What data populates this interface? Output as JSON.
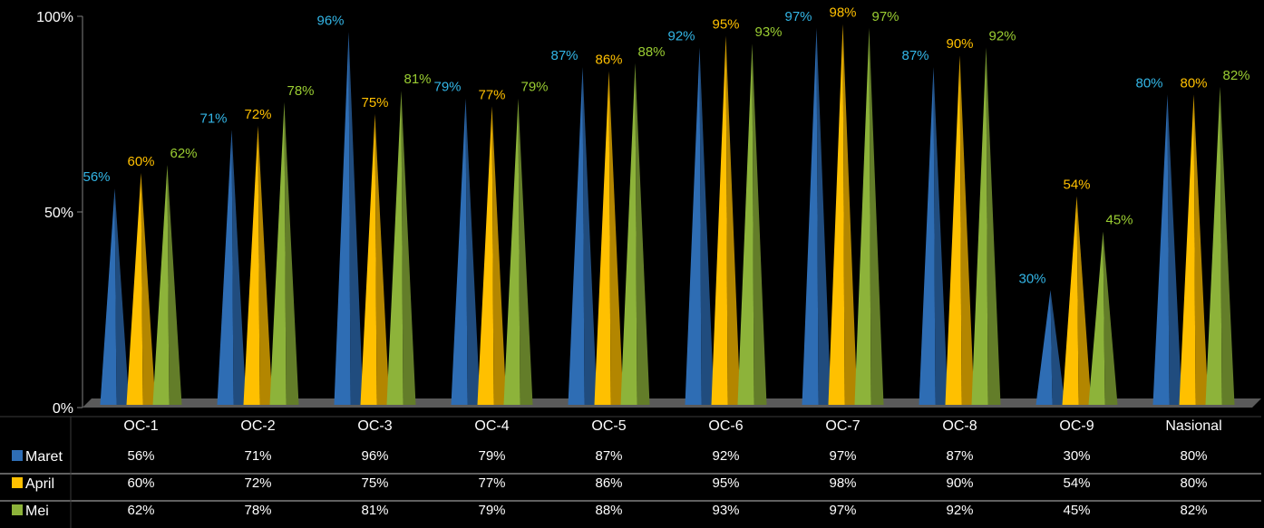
{
  "chart_data": {
    "type": "bar",
    "categories": [
      "OC-1",
      "OC-2",
      "OC-3",
      "OC-4",
      "OC-5",
      "OC-6",
      "OC-7",
      "OC-8",
      "OC-9",
      "Nasional"
    ],
    "series": [
      {
        "name": "Maret",
        "color": "#2E6DB4",
        "values": [
          56,
          71,
          96,
          79,
          87,
          92,
          97,
          87,
          30,
          80
        ],
        "labels": [
          "56%",
          "71%",
          "96%",
          "79%",
          "87%",
          "92%",
          "97%",
          "87%",
          "30%",
          "80%"
        ]
      },
      {
        "name": "April",
        "color": "#FFC000",
        "values": [
          60,
          72,
          75,
          77,
          86,
          95,
          98,
          90,
          54,
          80
        ],
        "labels": [
          "60%",
          "72%",
          "75%",
          "77%",
          "86%",
          "95%",
          "98%",
          "90%",
          "54%",
          "80%"
        ]
      },
      {
        "name": "Mei",
        "color": "#8DB33A",
        "values": [
          62,
          78,
          81,
          79,
          88,
          93,
          97,
          92,
          45,
          82
        ],
        "labels": [
          "62%",
          "78%",
          "81%",
          "79%",
          "88%",
          "93%",
          "97%",
          "92%",
          "45%",
          "82%"
        ]
      }
    ],
    "label_colors": [
      "#33B5E5",
      "#FFC000",
      "#9ACD32"
    ],
    "y_ticks": [
      "100%",
      "50%",
      "0%"
    ],
    "y_tick_values": [
      100,
      50,
      0
    ],
    "ylim": [
      0,
      100
    ],
    "shape": "cone",
    "data_table": true
  }
}
